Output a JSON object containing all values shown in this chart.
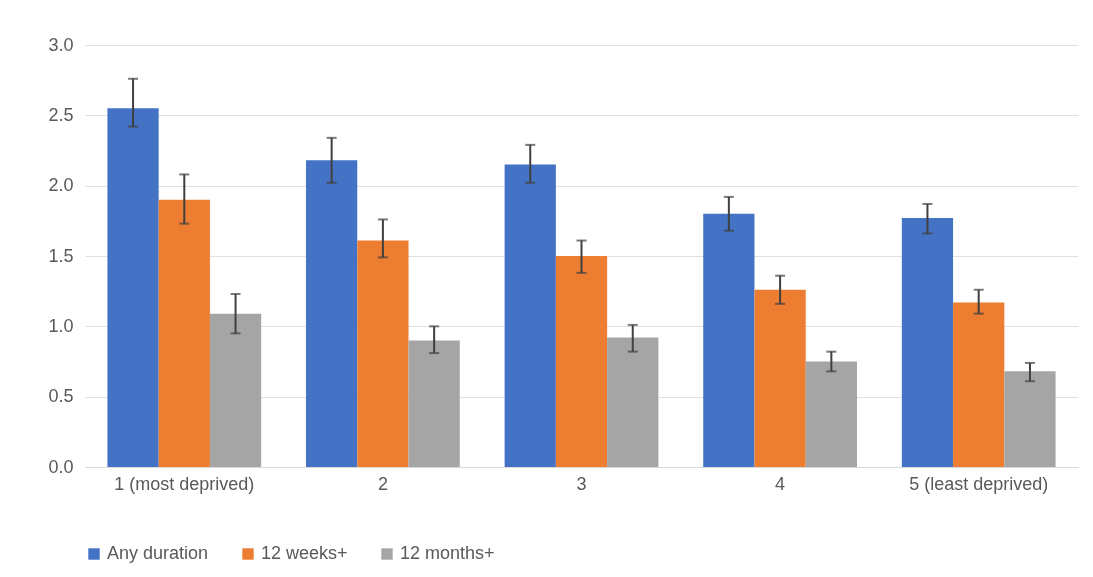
{
  "chart_data": {
    "type": "bar",
    "categories": [
      "1 (most deprived)",
      "2",
      "3",
      "4",
      "5 (least deprived)"
    ],
    "series": [
      {
        "name": "Any duration",
        "color": "#4472c4",
        "values": [
          2.55,
          2.18,
          2.15,
          1.8,
          1.77
        ],
        "errors": [
          [
            2.42,
            2.76
          ],
          [
            2.02,
            2.34
          ],
          [
            2.02,
            2.29
          ],
          [
            1.68,
            1.92
          ],
          [
            1.66,
            1.87
          ]
        ]
      },
      {
        "name": "12 weeks+",
        "color": "#ed7d31",
        "values": [
          1.9,
          1.61,
          1.5,
          1.26,
          1.17
        ],
        "errors": [
          [
            1.73,
            2.08
          ],
          [
            1.49,
            1.76
          ],
          [
            1.38,
            1.61
          ],
          [
            1.16,
            1.36
          ],
          [
            1.09,
            1.26
          ]
        ]
      },
      {
        "name": "12 months+",
        "color": "#a5a5a5",
        "values": [
          1.09,
          0.9,
          0.92,
          0.75,
          0.68
        ],
        "errors": [
          [
            0.95,
            1.23
          ],
          [
            0.81,
            1.0
          ],
          [
            0.82,
            1.01
          ],
          [
            0.68,
            0.82
          ],
          [
            0.61,
            0.74
          ]
        ]
      }
    ],
    "ylim": [
      0,
      3
    ],
    "yticks": [
      {
        "value": 0,
        "label": "0.0"
      },
      {
        "value": 0.5,
        "label": "0.5"
      },
      {
        "value": 1,
        "label": "1.0"
      },
      {
        "value": 1.5,
        "label": "1.5"
      },
      {
        "value": 2,
        "label": "2.0"
      },
      {
        "value": 2.5,
        "label": "2.5"
      },
      {
        "value": 3,
        "label": "3.0"
      }
    ],
    "grid": "y",
    "legend": "bottom"
  }
}
